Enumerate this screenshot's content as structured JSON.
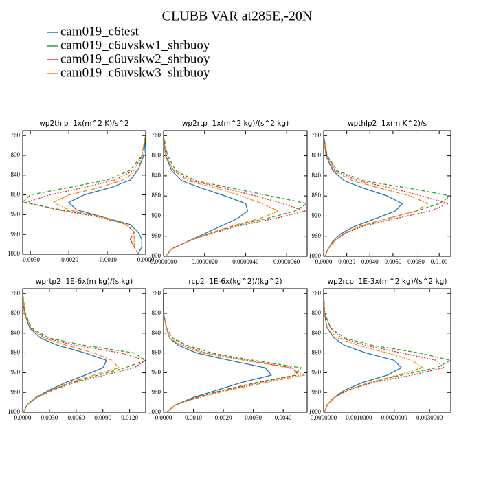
{
  "title": "CLUBB VAR at285E,-20N",
  "legend": [
    {
      "name": "cam019_c6test",
      "color": "#1f77b4",
      "dash": "solid"
    },
    {
      "name": "cam019_c6uvskw1_shrbuoy",
      "color": "#2ca02c",
      "dash": "dashed"
    },
    {
      "name": "cam019_c6uvskw2_shrbuoy",
      "color": "#d62728",
      "dash": "dotted"
    },
    {
      "name": "cam019_c6uvskw3_shrbuoy",
      "color": "#ff7f0e",
      "dash": "dashdot"
    }
  ],
  "chart_data": [
    {
      "type": "line",
      "title": "wp2thlp  1x(m^2 K)/s^2",
      "y": [
        1000,
        985,
        970,
        955,
        940,
        925,
        910,
        895,
        880,
        865,
        850,
        830,
        800,
        760
      ],
      "ylim": [
        1000,
        750
      ],
      "yticks": [
        760,
        800,
        840,
        880,
        920,
        960,
        1000
      ],
      "xlim": [
        -0.0032,
        0
      ],
      "xticks": [
        {
          "value": -0.003,
          "label": "-0.0030"
        },
        {
          "value": -0.002,
          "label": "-0.0020"
        },
        {
          "value": -0.001,
          "label": "-0.0010"
        },
        {
          "value": 0,
          "label": "0.0000"
        }
      ],
      "series": [
        {
          "values": [
            -0.0002,
            -0.0001,
            -0.0001,
            -0.0002,
            -0.0004,
            -0.0011,
            -0.0018,
            -0.002,
            -0.0016,
            -0.0009,
            -0.0004,
            -0.0002,
            -5e-05,
            0
          ]
        },
        {
          "values": [
            -0.0002,
            -0.0003,
            -0.0004,
            -0.0003,
            -0.0005,
            -0.0011,
            -0.0022,
            -0.0032,
            -0.003,
            -0.002,
            -0.001,
            -0.0004,
            -0.0001,
            0
          ]
        },
        {
          "values": [
            -0.0002,
            -0.0003,
            -0.0004,
            -0.0003,
            -0.0005,
            -0.0012,
            -0.0023,
            -0.0031,
            -0.0025,
            -0.0016,
            -0.0008,
            -0.0003,
            -0.0001,
            0
          ]
        },
        {
          "values": [
            -0.0002,
            -0.0003,
            -0.0003,
            -0.0003,
            -0.0005,
            -0.0011,
            -0.002,
            -0.0024,
            -0.002,
            -0.0012,
            -0.0006,
            -0.0002,
            -0.0001,
            0
          ]
        }
      ]
    },
    {
      "type": "line",
      "title": "wp2rtp  1x(m^2 kg)/(s^2 kg)",
      "y": [
        1000,
        985,
        970,
        955,
        940,
        925,
        910,
        895,
        880,
        865,
        850,
        830,
        800,
        760
      ],
      "ylim": [
        1000,
        750
      ],
      "yticks": [
        760,
        800,
        840,
        880,
        920,
        960,
        1000
      ],
      "xlim": [
        0,
        7e-06
      ],
      "xticks": [
        {
          "value": 0,
          "label": "0.0000000"
        },
        {
          "value": 2e-06,
          "label": "0.0000020"
        },
        {
          "value": 4e-06,
          "label": "0.0000040"
        },
        {
          "value": 6e-06,
          "label": "0.0000060"
        }
      ],
      "series": [
        {
          "values": [
            1e-07,
            4e-07,
            1.2e-06,
            2e-06,
            2.8e-06,
            3.6e-06,
            4.1e-06,
            4e-06,
            3e-06,
            1.9e-06,
            9e-07,
            4e-07,
            1e-07,
            0
          ]
        },
        {
          "values": [
            1e-07,
            4e-07,
            1.2e-06,
            2.2e-06,
            3.4e-06,
            5e-06,
            6.4e-06,
            7e-06,
            5.2e-06,
            3.4e-06,
            1.6e-06,
            6e-07,
            2e-07,
            0
          ]
        },
        {
          "values": [
            1e-07,
            4e-07,
            1.2e-06,
            2.3e-06,
            3.6e-06,
            5.4e-06,
            6.9e-06,
            5.8e-06,
            4.5e-06,
            3e-06,
            1.4e-06,
            5e-07,
            1e-07,
            0
          ]
        },
        {
          "values": [
            1e-07,
            4e-07,
            1.2e-06,
            2.2e-06,
            3.3e-06,
            4.7e-06,
            5.6e-06,
            4.8e-06,
            3.8e-06,
            2.6e-06,
            1.2e-06,
            5e-07,
            1e-07,
            0
          ]
        }
      ]
    },
    {
      "type": "line",
      "title": "wpthlp2  1x(m K^2)/s",
      "y": [
        1000,
        985,
        970,
        955,
        940,
        925,
        910,
        895,
        880,
        865,
        850,
        830,
        800,
        760
      ],
      "ylim": [
        1000,
        750
      ],
      "yticks": [
        760,
        800,
        840,
        880,
        920,
        960,
        1000
      ],
      "xlim": [
        0,
        0.011
      ],
      "xticks": [
        {
          "value": 0,
          "label": "0.0000"
        },
        {
          "value": 0.002,
          "label": "0.0020"
        },
        {
          "value": 0.004,
          "label": "0.0040"
        },
        {
          "value": 0.006,
          "label": "0.0060"
        },
        {
          "value": 0.008,
          "label": "0.0080"
        },
        {
          "value": 0.01,
          "label": "0.0100"
        }
      ],
      "series": [
        {
          "values": [
            0.0001,
            0.0004,
            0.0008,
            0.0015,
            0.0027,
            0.0045,
            0.0062,
            0.0068,
            0.0055,
            0.0035,
            0.0018,
            0.0008,
            0.0002,
            0
          ]
        },
        {
          "values": [
            0.0001,
            0.0004,
            0.0009,
            0.0018,
            0.0032,
            0.0055,
            0.008,
            0.01,
            0.011,
            0.0075,
            0.0035,
            0.0012,
            0.0003,
            0
          ]
        },
        {
          "values": [
            0.0001,
            0.0004,
            0.0009,
            0.0018,
            0.0034,
            0.0062,
            0.0092,
            0.0108,
            0.0085,
            0.006,
            0.003,
            0.001,
            0.0003,
            0
          ]
        },
        {
          "values": [
            0.0001,
            0.0004,
            0.0009,
            0.0017,
            0.0031,
            0.0055,
            0.008,
            0.009,
            0.0075,
            0.005,
            0.0025,
            0.0009,
            0.0002,
            0
          ]
        }
      ]
    },
    {
      "type": "line",
      "title": "wprtp2  1E-6x(m kg)/(s kg)",
      "y": [
        1000,
        985,
        970,
        955,
        940,
        925,
        910,
        895,
        880,
        865,
        850,
        830,
        800,
        760
      ],
      "ylim": [
        1000,
        750
      ],
      "yticks": [
        760,
        800,
        840,
        880,
        920,
        960,
        1000
      ],
      "xlim": [
        0,
        0.0138
      ],
      "xticks": [
        {
          "value": 0,
          "label": "0.0000"
        },
        {
          "value": 0.003,
          "label": "0.0030"
        },
        {
          "value": 0.006,
          "label": "0.0060"
        },
        {
          "value": 0.009,
          "label": "0.0090"
        },
        {
          "value": 0.012,
          "label": "0.0120"
        }
      ],
      "series": [
        {
          "values": [
            0.0001,
            0.0005,
            0.0015,
            0.003,
            0.0048,
            0.007,
            0.009,
            0.0094,
            0.007,
            0.004,
            0.002,
            0.0008,
            0.0002,
            0
          ]
        },
        {
          "values": [
            0.0001,
            0.0005,
            0.0016,
            0.0033,
            0.0055,
            0.0085,
            0.0115,
            0.0138,
            0.0125,
            0.007,
            0.003,
            0.001,
            0.0003,
            0
          ]
        },
        {
          "values": [
            0.0001,
            0.0005,
            0.0016,
            0.0034,
            0.0058,
            0.0092,
            0.0125,
            0.0138,
            0.011,
            0.006,
            0.0026,
            0.0009,
            0.0002,
            0
          ]
        },
        {
          "values": [
            0.0001,
            0.0005,
            0.0016,
            0.0032,
            0.0052,
            0.008,
            0.0108,
            0.01,
            0.008,
            0.005,
            0.0024,
            0.0009,
            0.0002,
            0
          ]
        }
      ]
    },
    {
      "type": "line",
      "title": "rcp2  1E-6x(kg^2)/(kg^2)",
      "y": [
        1000,
        985,
        970,
        955,
        940,
        925,
        910,
        895,
        880,
        865,
        850,
        830,
        800,
        760
      ],
      "ylim": [
        1000,
        750
      ],
      "yticks": [
        760,
        800,
        840,
        880,
        920,
        960,
        1000
      ],
      "xlim": [
        0,
        0.0048
      ],
      "xticks": [
        {
          "value": 0,
          "label": "0.0000"
        },
        {
          "value": 0.001,
          "label": "0.0010"
        },
        {
          "value": 0.002,
          "label": "0.0020"
        },
        {
          "value": 0.003,
          "label": "0.0030"
        },
        {
          "value": 0.004,
          "label": "0.0040"
        }
      ],
      "series": [
        {
          "values": [
            0.0001,
            0.0004,
            0.001,
            0.0018,
            0.0026,
            0.0036,
            0.0034,
            0.0022,
            0.0011,
            0.0005,
            0.0002,
            0.0001,
            0,
            0
          ]
        },
        {
          "values": [
            0.0001,
            0.0004,
            0.0011,
            0.002,
            0.0031,
            0.0044,
            0.0046,
            0.003,
            0.0016,
            0.0008,
            0.0003,
            0.0001,
            0,
            0
          ]
        },
        {
          "values": [
            0.0001,
            0.0004,
            0.0011,
            0.0021,
            0.0032,
            0.0045,
            0.0043,
            0.0028,
            0.0014,
            0.0007,
            0.0003,
            0.0001,
            0,
            0
          ]
        },
        {
          "values": [
            0.0001,
            0.0004,
            0.0012,
            0.0022,
            0.0034,
            0.0047,
            0.0042,
            0.0027,
            0.0013,
            0.0006,
            0.0002,
            0.0001,
            0,
            0
          ]
        }
      ]
    },
    {
      "type": "line",
      "title": "wp2rcp  1E-3x(m^2 kg)/(s^2 kg)",
      "y": [
        1000,
        985,
        970,
        955,
        940,
        925,
        910,
        895,
        880,
        865,
        850,
        830,
        800,
        760
      ],
      "ylim": [
        1000,
        750
      ],
      "yticks": [
        760,
        800,
        840,
        880,
        920,
        960,
        1000
      ],
      "xlim": [
        0,
        0.0036
      ],
      "xticks": [
        {
          "value": 0,
          "label": "0.0000000"
        },
        {
          "value": 0.001,
          "label": "0.0010000"
        },
        {
          "value": 0.002,
          "label": "0.0020000"
        },
        {
          "value": 0.003,
          "label": "0.0030000"
        }
      ],
      "series": [
        {
          "values": [
            2e-05,
            0.0001,
            0.0003,
            0.0006,
            0.0011,
            0.0018,
            0.0022,
            0.002,
            0.0012,
            0.0006,
            0.0003,
            0.0001,
            2e-05,
            0
          ]
        },
        {
          "values": [
            2e-05,
            0.0001,
            0.0003,
            0.0007,
            0.0013,
            0.0022,
            0.0032,
            0.0036,
            0.0027,
            0.0014,
            0.0006,
            0.0002,
            3e-05,
            0
          ]
        },
        {
          "values": [
            2e-05,
            0.0001,
            0.0003,
            0.0007,
            0.0014,
            0.0025,
            0.0034,
            0.0032,
            0.0022,
            0.0012,
            0.0005,
            0.0002,
            3e-05,
            0
          ]
        },
        {
          "values": [
            2e-05,
            0.0001,
            0.0003,
            0.0007,
            0.0013,
            0.0021,
            0.0028,
            0.0025,
            0.0018,
            0.001,
            0.0004,
            0.0001,
            2e-05,
            0
          ]
        }
      ]
    }
  ]
}
